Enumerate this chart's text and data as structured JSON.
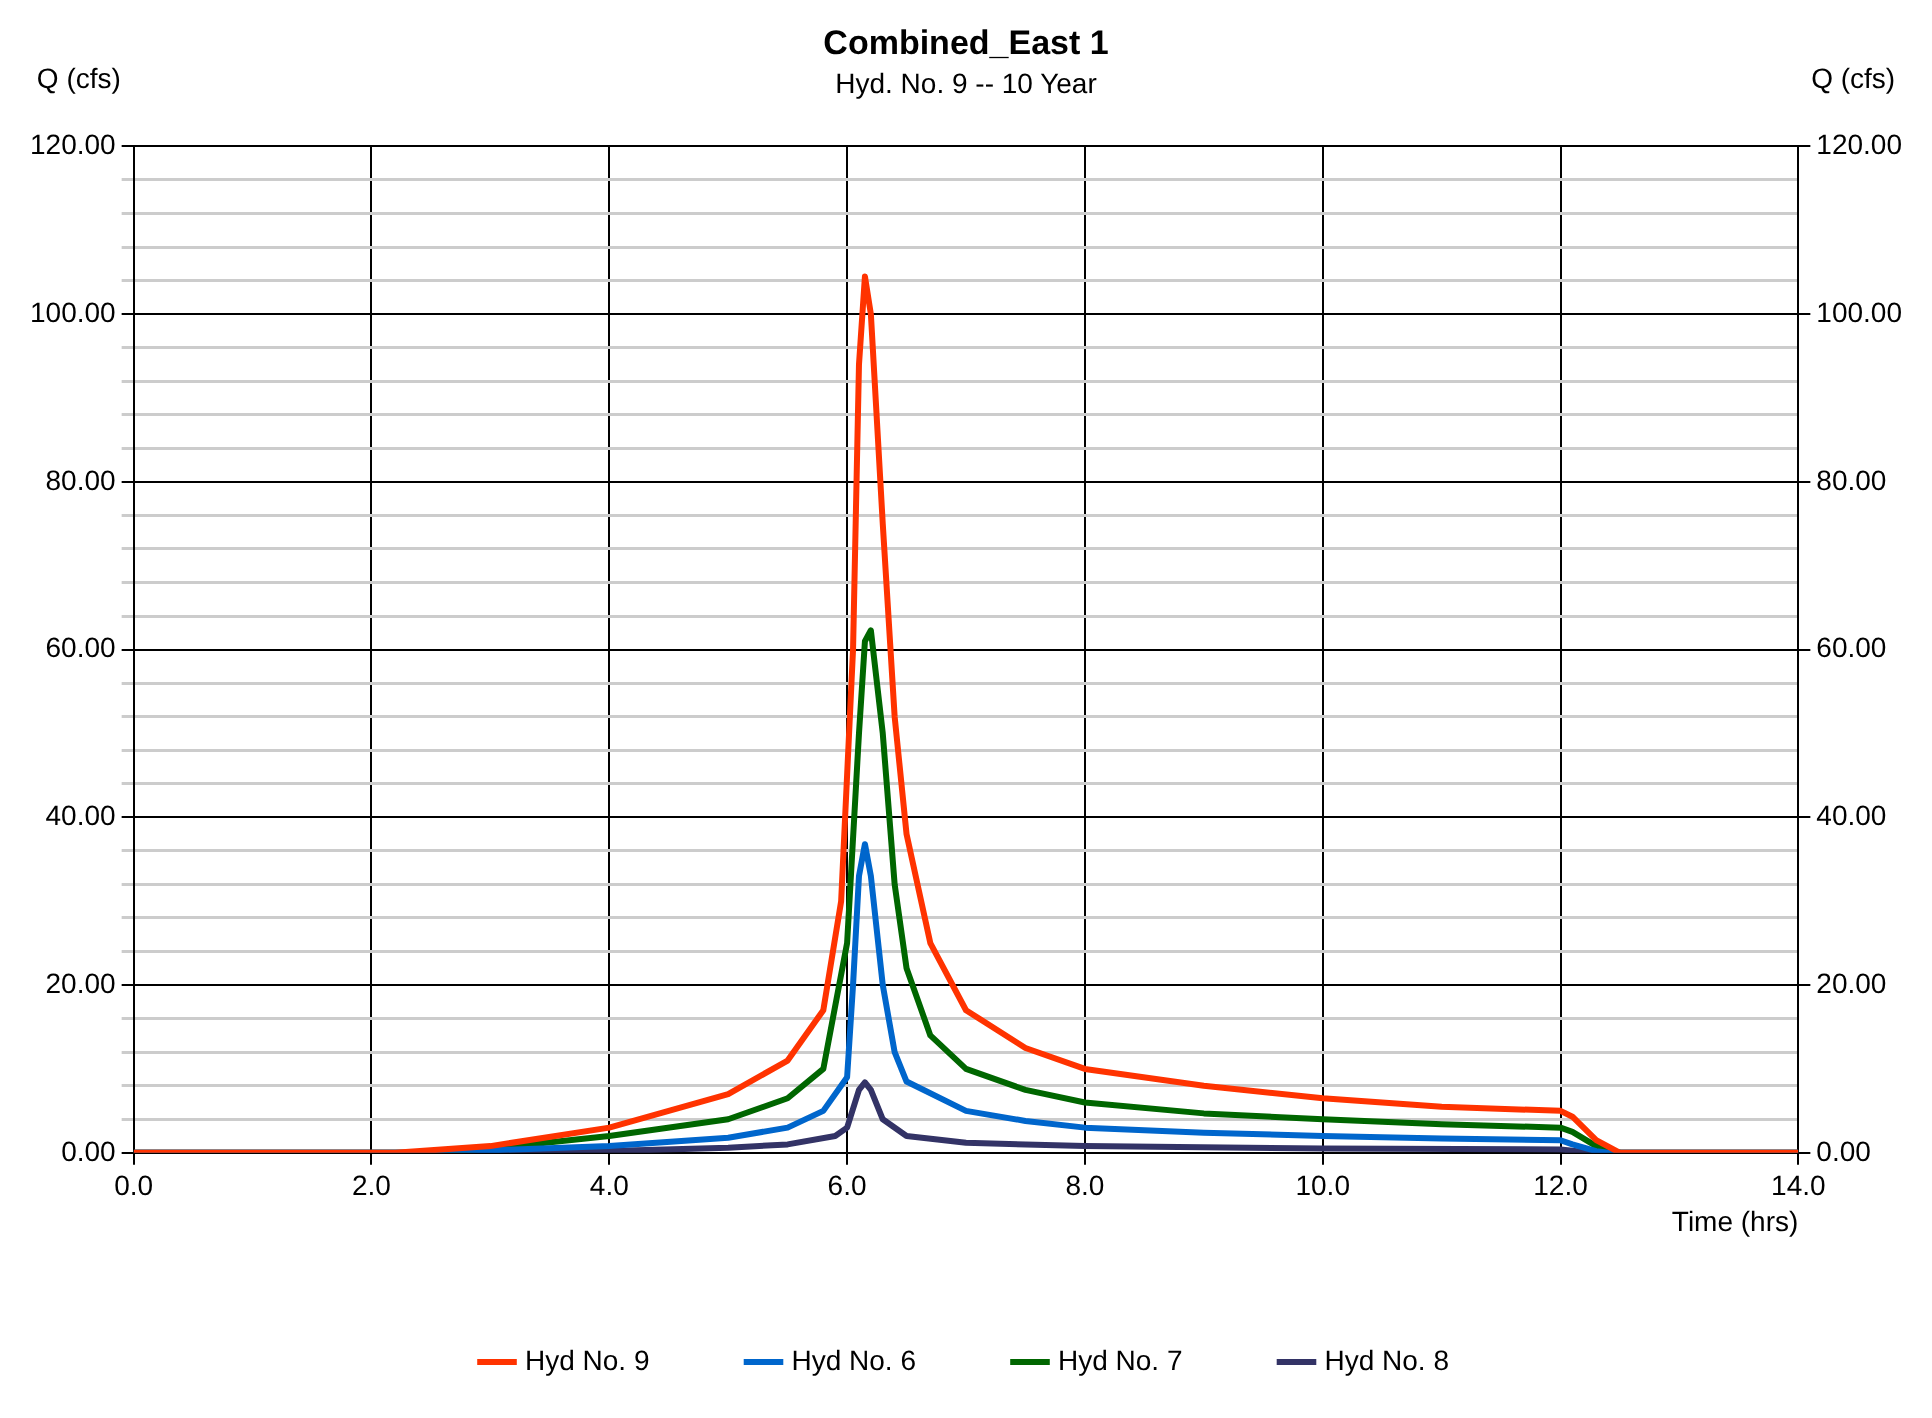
{
  "chart_data": {
    "type": "line",
    "title": "Combined_East 1",
    "subtitle": "Hyd. No. 9 -- 10 Year",
    "xlabel": "Time (hrs)",
    "ylabel": "Q (cfs)",
    "y2label": "Q (cfs)",
    "xlim": [
      0,
      14
    ],
    "xticks": [
      {
        "value": 0,
        "label": "0.0"
      },
      {
        "value": 2,
        "label": "2.0"
      },
      {
        "value": 4,
        "label": "4.0"
      },
      {
        "value": 6,
        "label": "6.0"
      },
      {
        "value": 8,
        "label": "8.0"
      },
      {
        "value": 10,
        "label": "10.0"
      },
      {
        "value": 12,
        "label": "12.0"
      },
      {
        "value": 14,
        "label": "14.0"
      }
    ],
    "ylim": [
      0,
      120
    ],
    "yticks": [
      {
        "value": 0,
        "label": "0.00"
      },
      {
        "value": 4,
        "label": null
      },
      {
        "value": 8,
        "label": null
      },
      {
        "value": 12,
        "label": null
      },
      {
        "value": 16,
        "label": null
      },
      {
        "value": 20,
        "label": "20.00"
      },
      {
        "value": 24,
        "label": null
      },
      {
        "value": 28,
        "label": null
      },
      {
        "value": 32,
        "label": null
      },
      {
        "value": 36,
        "label": null
      },
      {
        "value": 40,
        "label": "40.00"
      },
      {
        "value": 44,
        "label": null
      },
      {
        "value": 48,
        "label": null
      },
      {
        "value": 52,
        "label": null
      },
      {
        "value": 56,
        "label": null
      },
      {
        "value": 60,
        "label": "60.00"
      },
      {
        "value": 64,
        "label": null
      },
      {
        "value": 68,
        "label": null
      },
      {
        "value": 72,
        "label": null
      },
      {
        "value": 76,
        "label": null
      },
      {
        "value": 80,
        "label": "80.00"
      },
      {
        "value": 84,
        "label": null
      },
      {
        "value": 88,
        "label": null
      },
      {
        "value": 92,
        "label": null
      },
      {
        "value": 96,
        "label": null
      },
      {
        "value": 100,
        "label": "100.00"
      },
      {
        "value": 104,
        "label": null
      },
      {
        "value": 108,
        "label": null
      },
      {
        "value": 112,
        "label": null
      },
      {
        "value": 116,
        "label": null
      },
      {
        "value": 120,
        "label": "120.00"
      }
    ],
    "y2lim": [
      0,
      120
    ],
    "y2ticks": [
      {
        "value": 0,
        "label": "0.00"
      },
      {
        "value": 20,
        "label": "20.00"
      },
      {
        "value": 40,
        "label": "40.00"
      },
      {
        "value": 60,
        "label": "60.00"
      },
      {
        "value": 80,
        "label": "80.00"
      },
      {
        "value": 100,
        "label": "100.00"
      },
      {
        "value": 120,
        "label": "120.00"
      }
    ],
    "grid": true,
    "legend": "bottom",
    "marker": "none",
    "line_style": "solid",
    "series": [
      {
        "name": "Hyd No. 9",
        "color": "#ff3300",
        "x": [
          0,
          2.2,
          3,
          4,
          5,
          5.5,
          5.8,
          5.95,
          6.05,
          6.1,
          6.15,
          6.2,
          6.3,
          6.4,
          6.5,
          6.7,
          7,
          7.5,
          8,
          9,
          10,
          11,
          12,
          12.1,
          12.3,
          12.5,
          14
        ],
        "values": [
          0,
          0,
          0.8,
          3,
          7,
          11,
          17,
          30,
          60,
          94,
          104.5,
          100,
          75,
          52,
          38,
          25,
          17,
          12.5,
          10,
          8,
          6.5,
          5.5,
          5,
          4.3,
          1.5,
          0,
          0
        ]
      },
      {
        "name": "Hyd No. 6",
        "color": "#0066cc",
        "x": [
          0,
          2.4,
          3,
          4,
          5,
          5.5,
          5.8,
          6,
          6.05,
          6.1,
          6.15,
          6.2,
          6.3,
          6.4,
          6.5,
          7,
          7.5,
          8,
          9,
          10,
          11,
          12,
          12.1,
          12.3,
          12.4,
          14
        ],
        "values": [
          0,
          0,
          0.3,
          0.8,
          1.8,
          3,
          5,
          9,
          20,
          33,
          36.8,
          33,
          20,
          12,
          8.5,
          5,
          3.8,
          3,
          2.4,
          2,
          1.7,
          1.5,
          1,
          0.2,
          0,
          0
        ]
      },
      {
        "name": "Hyd No. 7",
        "color": "#006600",
        "x": [
          0,
          2.3,
          3,
          4,
          5,
          5.5,
          5.8,
          6,
          6.1,
          6.15,
          6.2,
          6.3,
          6.4,
          6.5,
          6.7,
          7,
          7.5,
          8,
          9,
          10,
          11,
          12,
          12.1,
          12.3,
          12.5,
          14
        ],
        "values": [
          0,
          0,
          0.5,
          2,
          4,
          6.5,
          10,
          25,
          50,
          61,
          62.3,
          50,
          32,
          22,
          14,
          10,
          7.5,
          6,
          4.7,
          4,
          3.4,
          3,
          2.5,
          0.8,
          0,
          0
        ]
      },
      {
        "name": "Hyd No. 8",
        "color": "#333366",
        "x": [
          0,
          2.5,
          4,
          5,
          5.5,
          5.9,
          6,
          6.1,
          6.15,
          6.2,
          6.3,
          6.5,
          7,
          8,
          10,
          12,
          12.2,
          12.4,
          14
        ],
        "values": [
          0,
          0,
          0.2,
          0.6,
          1,
          2,
          3,
          7.5,
          8.4,
          7.5,
          4,
          2,
          1.2,
          0.8,
          0.5,
          0.4,
          0.1,
          0,
          0
        ]
      }
    ]
  }
}
